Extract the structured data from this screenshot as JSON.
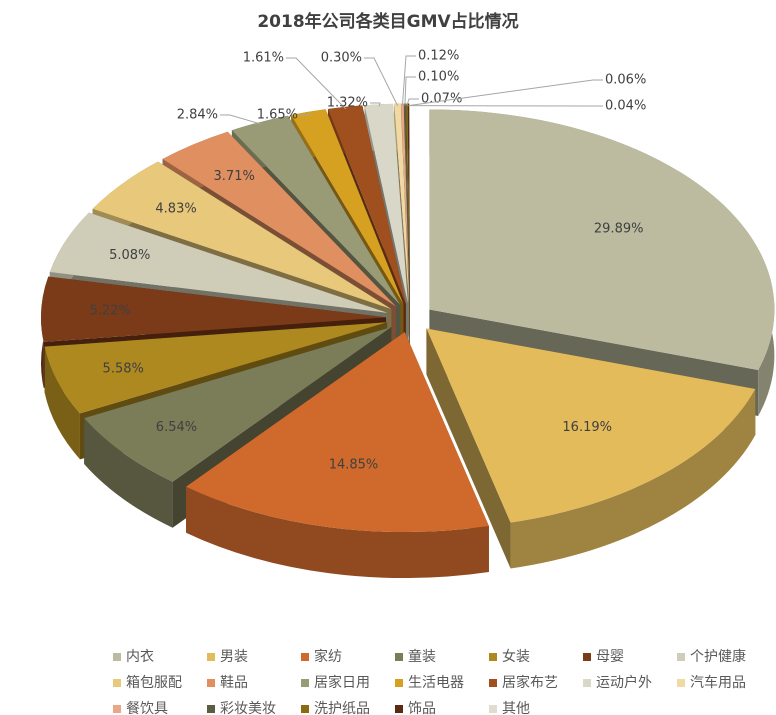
{
  "chart_data": {
    "type": "pie3d",
    "title": "2018年公司各类目GMV占比情况",
    "categories": [
      "内衣",
      "男装",
      "家纺",
      "童装",
      "女装",
      "母婴",
      "个护健康",
      "箱包服配",
      "鞋品",
      "居家日用",
      "生活电器",
      "居家布艺",
      "运动户外",
      "汽车用品",
      "餐饮具",
      "彩妆美妆",
      "洗护纸品",
      "饰品",
      "其他"
    ],
    "values": [
      29.89,
      16.19,
      14.85,
      6.54,
      5.58,
      5.22,
      5.08,
      4.83,
      3.71,
      2.84,
      1.65,
      1.61,
      1.32,
      0.3,
      0.12,
      0.1,
      0.07,
      0.06,
      0.04
    ],
    "value_labels": [
      "29.89%",
      "16.19%",
      "14.85%",
      "6.54%",
      "5.58%",
      "5.22%",
      "5.08%",
      "4.83%",
      "3.71%",
      "2.84%",
      "1.65%",
      "1.61%",
      "1.32%",
      "0.30%",
      "0.12%",
      "0.10%",
      "0.07%",
      "0.06%",
      "0.04%"
    ],
    "colors": [
      "#bcbb9f",
      "#e3bb5b",
      "#cf6a2c",
      "#7b7c58",
      "#ae891f",
      "#7b3b18",
      "#cfcdb8",
      "#e8c87a",
      "#df8f60",
      "#999b76",
      "#d6a021",
      "#a0501f",
      "#d9d8c8",
      "#f0d9a2",
      "#e8a888",
      "#5b5d40",
      "#8a6b12",
      "#5b2b11",
      "#e0dcd0"
    ],
    "legend": "bottom"
  }
}
